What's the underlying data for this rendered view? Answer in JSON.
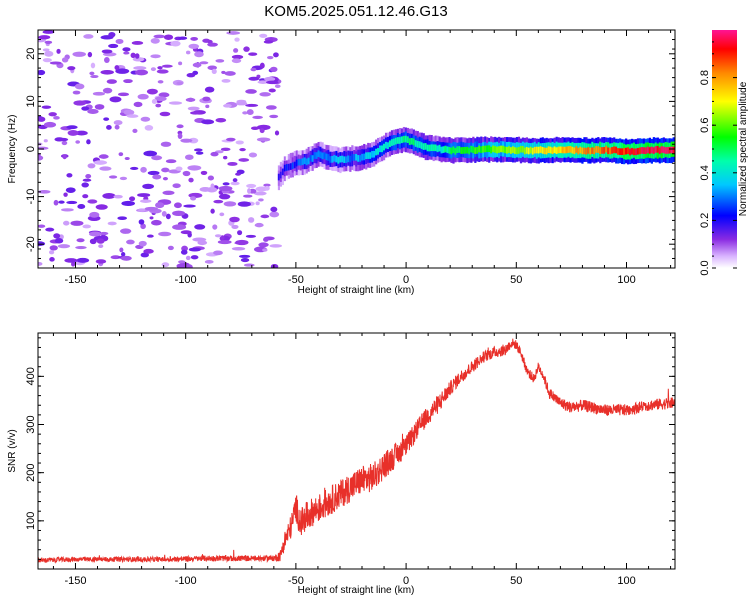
{
  "title": "KOM5.2025.051.12.46.G13",
  "colors": {
    "snr_line": "#e8302a",
    "axis": "#000000"
  },
  "chart_data": [
    {
      "type": "heatmap",
      "xlabel": "Height of straight line (km)",
      "ylabel": "Frequency (Hz)",
      "xlim": [
        -167,
        122
      ],
      "ylim": [
        -25,
        25
      ],
      "xticks": [
        -150,
        -100,
        -50,
        0,
        50,
        100
      ],
      "yticks": [
        -20,
        -10,
        0,
        10,
        20
      ],
      "colorbar": {
        "label": "Normalized spectral amplitude",
        "range": [
          0,
          1
        ],
        "ticks": [
          "0.0",
          "0.2",
          "0.4",
          "0.6",
          "0.8"
        ],
        "tick_values": [
          0.0,
          0.2,
          0.4,
          0.6,
          0.8
        ]
      },
      "noise_region": {
        "x": [
          -167,
          -58
        ],
        "y": [
          -25,
          25
        ],
        "amplitude": 0.08
      },
      "ridge": {
        "x": [
          -58,
          -55,
          -50,
          -45,
          -40,
          -35,
          -30,
          -25,
          -20,
          -15,
          -10,
          -5,
          0,
          5,
          10,
          15,
          20,
          30,
          40,
          50,
          60,
          70,
          80,
          90,
          100,
          110,
          122
        ],
        "y": [
          -6,
          -4,
          -3,
          -2.5,
          -1,
          -2,
          -2.3,
          -2,
          -1.8,
          -1,
          0.5,
          1.5,
          2.0,
          1.0,
          0.2,
          0,
          -0.3,
          -0.2,
          -0.1,
          -0.2,
          -0.3,
          -0.2,
          -0.3,
          -0.2,
          -0.5,
          -0.3,
          -0.2
        ],
        "amplitude": [
          0.15,
          0.2,
          0.25,
          0.3,
          0.3,
          0.32,
          0.35,
          0.3,
          0.35,
          0.35,
          0.4,
          0.45,
          0.5,
          0.45,
          0.45,
          0.4,
          0.5,
          0.55,
          0.6,
          0.65,
          0.7,
          0.75,
          0.8,
          0.85,
          0.9,
          0.95,
          0.95
        ]
      }
    },
    {
      "type": "line",
      "xlabel": "Height of straight line (km)",
      "ylabel": "SNR (v/v)",
      "xlim": [
        -167,
        122
      ],
      "ylim": [
        0,
        490
      ],
      "xticks": [
        -150,
        -100,
        -50,
        0,
        50,
        100
      ],
      "yticks": [
        100,
        200,
        300,
        400
      ],
      "series": [
        {
          "color": "#e8302a",
          "x": [
            -167,
            -150,
            -130,
            -110,
            -90,
            -70,
            -60,
            -57,
            -55,
            -52,
            -50,
            -48,
            -45,
            -42,
            -40,
            -35,
            -30,
            -25,
            -20,
            -15,
            -10,
            -5,
            0,
            5,
            10,
            15,
            20,
            25,
            30,
            35,
            40,
            45,
            48,
            50,
            52,
            55,
            58,
            60,
            62,
            65,
            70,
            75,
            80,
            90,
            100,
            110,
            122
          ],
          "y": [
            18,
            20,
            20,
            20,
            22,
            22,
            22,
            28,
            60,
            90,
            130,
            95,
            110,
            120,
            125,
            140,
            155,
            170,
            185,
            190,
            215,
            235,
            255,
            290,
            320,
            345,
            375,
            400,
            420,
            440,
            450,
            455,
            470,
            465,
            450,
            410,
            395,
            420,
            405,
            365,
            345,
            335,
            340,
            330,
            330,
            340,
            345
          ],
          "noise": [
            5,
            5,
            5,
            5,
            6,
            6,
            6,
            12,
            20,
            25,
            30,
            30,
            30,
            30,
            30,
            30,
            30,
            30,
            30,
            30,
            28,
            25,
            22,
            20,
            20,
            20,
            15,
            14,
            13,
            12,
            12,
            12,
            10,
            10,
            10,
            10,
            10,
            10,
            10,
            12,
            12,
            12,
            12,
            12,
            12,
            12,
            12
          ]
        }
      ]
    }
  ]
}
